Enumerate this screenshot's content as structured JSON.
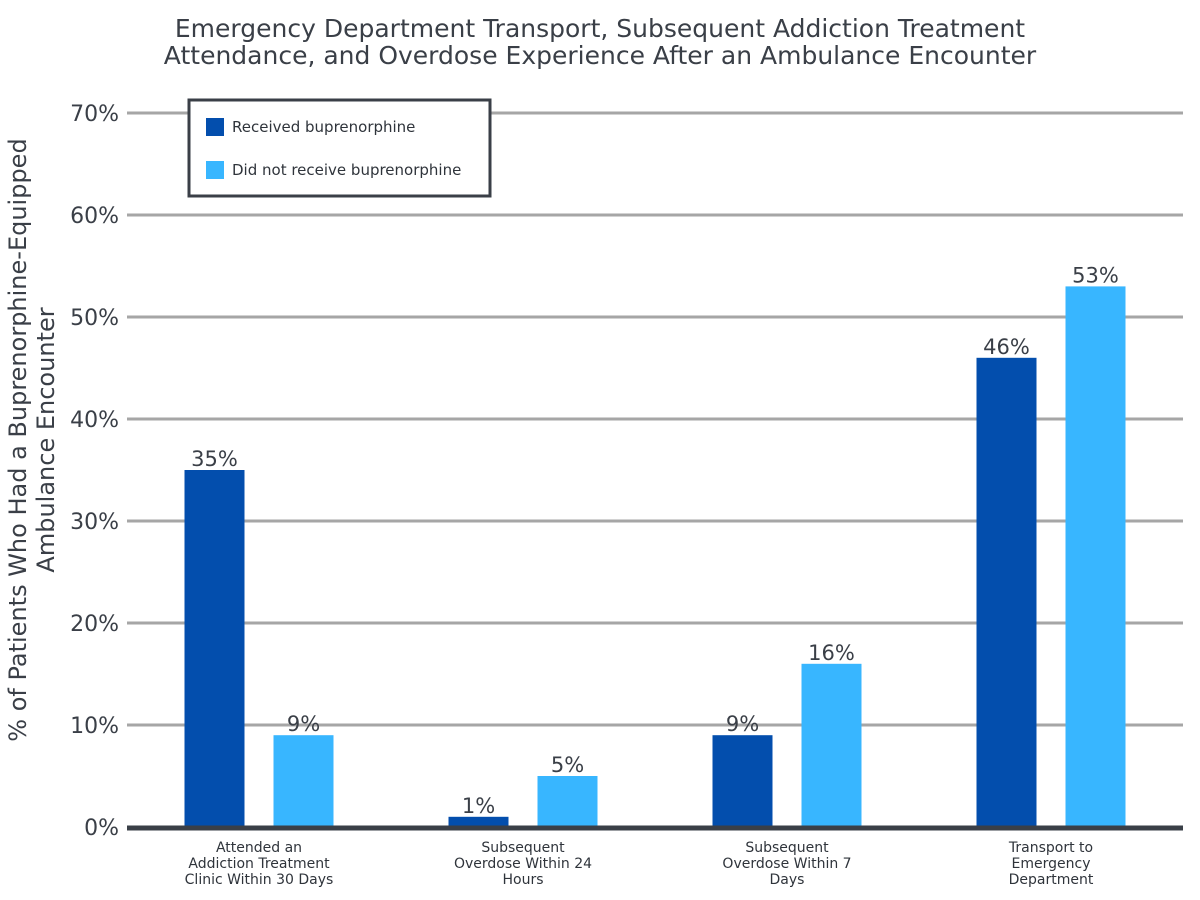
{
  "chart_data": {
    "type": "bar",
    "title": [
      "Emergency Department Transport, Subsequent Addiction Treatment",
      "Attendance, and Overdose Experience After an Ambulance Encounter"
    ],
    "ylabel": [
      "% of Patients Who Had a Buprenorphine-Equipped",
      "Ambulance Encounter"
    ],
    "xlabel": "",
    "categories": [
      [
        "Attended an",
        "Addiction Treatment",
        "Clinic Within 30 Days"
      ],
      [
        "Subsequent",
        "Overdose Within 24",
        "Hours"
      ],
      [
        "Subsequent",
        "Overdose Within 7",
        "Days"
      ],
      [
        "Transport to",
        "Emergency",
        "Department"
      ]
    ],
    "series": [
      {
        "name": "Received buprenorphine",
        "color": "#034ead",
        "values": [
          35,
          1,
          9,
          46
        ],
        "labels": [
          "35%",
          "1%",
          "9%",
          "46%"
        ]
      },
      {
        "name": "Did not receive buprenorphine",
        "color": "#38b6ff",
        "values": [
          9,
          5,
          16,
          53
        ],
        "labels": [
          "9%",
          "5%",
          "16%",
          "53%"
        ]
      }
    ],
    "ylim": [
      0,
      70
    ],
    "yticks": [
      0,
      10,
      20,
      30,
      40,
      50,
      60,
      70
    ],
    "ytick_labels": [
      "0%",
      "10%",
      "20%",
      "30%",
      "40%",
      "50%",
      "60%",
      "70%"
    ],
    "grid": true,
    "legend_position": "top-left",
    "colors": {
      "grid": "#a6a6a6",
      "axis": "#3a3f47",
      "legend_border": "#3a3f47"
    }
  }
}
